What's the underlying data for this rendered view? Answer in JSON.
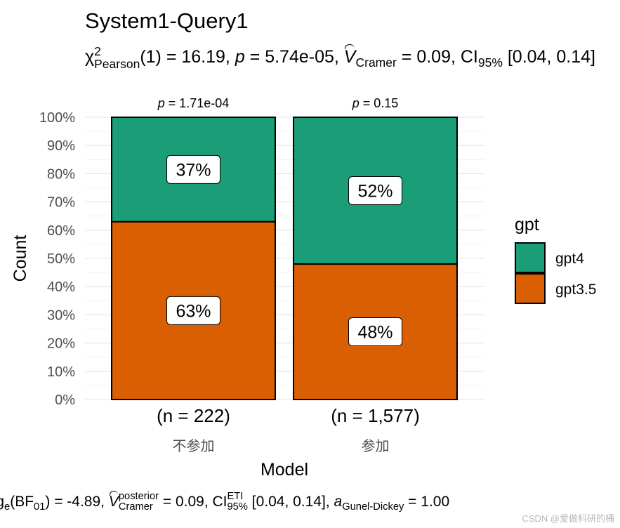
{
  "title": "System1-Query1",
  "subtitle": {
    "chi": "χ",
    "chi_sup": "2",
    "chi_sub": "Pearson",
    "df": "(1) = 16.19, ",
    "p_sym": "p",
    "p_rest": " = 5.74e-05, ",
    "v_sym": "V",
    "v_sub": "Cramer",
    "v_rest": " = 0.09, CI",
    "ci_sub": "95%",
    "ci_rest": " [0.04, 0.14]"
  },
  "caption": {
    "bf_pre": "log",
    "bf_sub": "e",
    "bf_mid": "(BF",
    "bf_sub2": "01",
    "bf_rest": ") = -4.89, ",
    "v_sym": "V",
    "v_sup": "posterior",
    "v_sub": "Cramer",
    "v_rest": " = 0.09, CI",
    "ci_sup": "ETI",
    "ci_sub": "95%",
    "ci_rest": " [0.04, 0.14], ",
    "a_sym": "a",
    "a_sub": "Gunel-Dickey",
    "a_rest": " = 1.00"
  },
  "watermark": "CSDN @爱做科研的桶",
  "chart_data": {
    "type": "bar",
    "stacked": true,
    "percent": true,
    "categories": [
      "不参加",
      "参加"
    ],
    "n_labels": [
      "(n = 222)",
      "(n = 1,577)"
    ],
    "p_labels": [
      "p = 1.71e-04",
      "p = 0.15"
    ],
    "series": [
      {
        "name": "gpt3.5",
        "values": [
          63,
          48
        ],
        "labels": [
          "63%",
          "48%"
        ],
        "color": "#D95F02"
      },
      {
        "name": "gpt4",
        "values": [
          37,
          52
        ],
        "labels": [
          "37%",
          "52%"
        ],
        "color": "#1B9E77"
      }
    ],
    "xlabel": "Model",
    "ylabel": "Count",
    "ylim": [
      0,
      100
    ],
    "yticks": [
      "0%",
      "10%",
      "20%",
      "30%",
      "40%",
      "50%",
      "60%",
      "70%",
      "80%",
      "90%",
      "100%"
    ],
    "legend": {
      "title": "gpt",
      "items": [
        {
          "label": "gpt4",
          "color": "#1B9E77"
        },
        {
          "label": "gpt3.5",
          "color": "#D95F02"
        }
      ],
      "position": "right"
    },
    "grid": true
  }
}
